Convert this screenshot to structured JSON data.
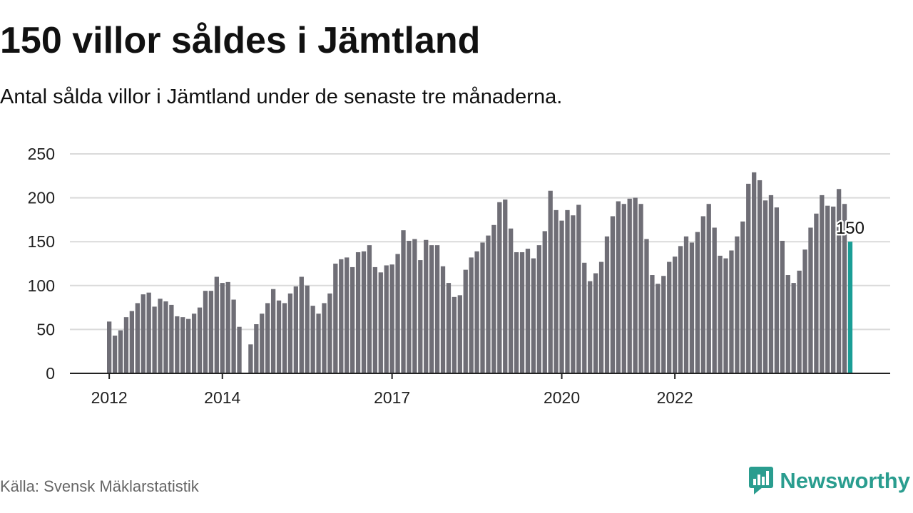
{
  "header": {
    "title": "150 villor såldes i Jämtland",
    "subtitle": "Antal sålda villor i Jämtland under de senaste tre månaderna."
  },
  "footer": {
    "source": "Källa: Svensk Mäklarstatistik",
    "brand": "Newsworthy",
    "brand_icon": "bar-chart-speech-bubble-icon"
  },
  "colors": {
    "bar": "#6f6e76",
    "highlight": "#1a9e96",
    "grid": "#dadada",
    "axis": "#222222",
    "brand": "#2a9d8f"
  },
  "chart_data": {
    "type": "bar",
    "ylim": [
      0,
      250
    ],
    "yticks": [
      0,
      50,
      100,
      150,
      200,
      250
    ],
    "grid": true,
    "xlabels": [
      {
        "label": "2012",
        "index": 0
      },
      {
        "label": "2014",
        "index": 20
      },
      {
        "label": "2017",
        "index": 50
      },
      {
        "label": "2020",
        "index": 80
      },
      {
        "label": "2022",
        "index": 100
      }
    ],
    "values": [
      59,
      43,
      49,
      64,
      71,
      80,
      90,
      92,
      76,
      85,
      82,
      78,
      65,
      64,
      62,
      68,
      75,
      94,
      94,
      110,
      103,
      104,
      84,
      53,
      0,
      33,
      56,
      68,
      80,
      96,
      83,
      80,
      91,
      99,
      110,
      100,
      77,
      68,
      80,
      91,
      125,
      130,
      132,
      121,
      138,
      139,
      146,
      121,
      115,
      123,
      124,
      136,
      163,
      151,
      153,
      129,
      152,
      146,
      146,
      122,
      103,
      87,
      89,
      118,
      132,
      139,
      149,
      157,
      169,
      195,
      198,
      165,
      138,
      138,
      142,
      131,
      146,
      162,
      208,
      186,
      174,
      186,
      180,
      192,
      126,
      105,
      114,
      127,
      156,
      179,
      196,
      193,
      199,
      200,
      193,
      153,
      112,
      102,
      111,
      127,
      133,
      145,
      156,
      149,
      161,
      179,
      193,
      166,
      134,
      131,
      140,
      156,
      173,
      216,
      229,
      220,
      197,
      203,
      189,
      151,
      112,
      103,
      117,
      141,
      166,
      182,
      203,
      191,
      190,
      210,
      193,
      150
    ],
    "highlight": {
      "label": "150",
      "value": 150
    }
  }
}
